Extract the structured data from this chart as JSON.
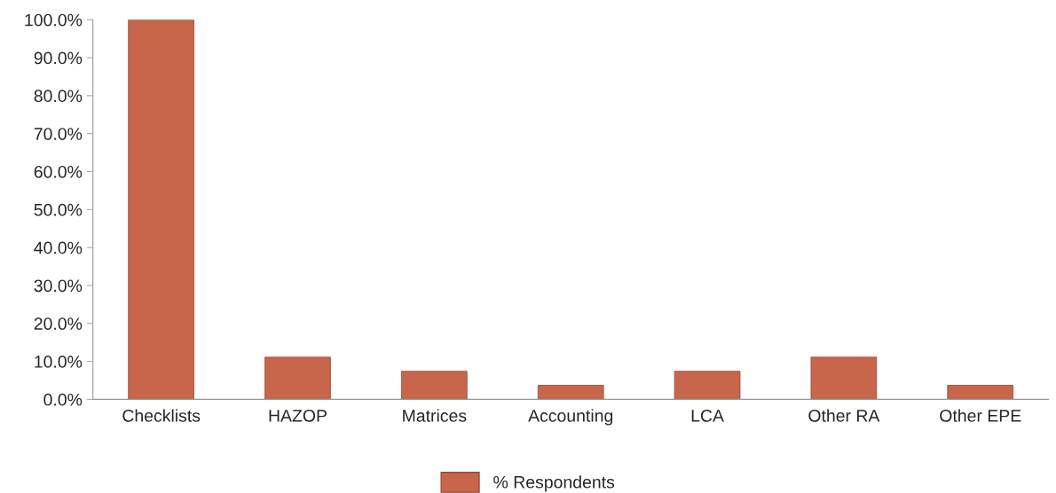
{
  "chart_data": {
    "type": "bar",
    "categories": [
      "Checklists",
      "HAZOP",
      "Matrices",
      "Accounting",
      "LCA",
      "Other RA",
      "Other EPE"
    ],
    "series": [
      {
        "name": "% Respondents",
        "color": "#c8664c",
        "values": [
          100,
          11.1,
          7.4,
          3.7,
          7.4,
          11.1,
          3.7
        ]
      }
    ],
    "ylim": [
      0,
      100
    ],
    "yticks": [
      {
        "value": 0,
        "label": "0.0%"
      },
      {
        "value": 10,
        "label": "10.0%"
      },
      {
        "value": 20,
        "label": "20.0%"
      },
      {
        "value": 30,
        "label": "30.0%"
      },
      {
        "value": 40,
        "label": "40.0%"
      },
      {
        "value": 50,
        "label": "50.0%"
      },
      {
        "value": 60,
        "label": "60.0%"
      },
      {
        "value": 70,
        "label": "70.0%"
      },
      {
        "value": 80,
        "label": "80.0%"
      },
      {
        "value": 90,
        "label": "90.0%"
      },
      {
        "value": 100,
        "label": "100.0%"
      }
    ],
    "grid": false,
    "legend": "bottom"
  }
}
